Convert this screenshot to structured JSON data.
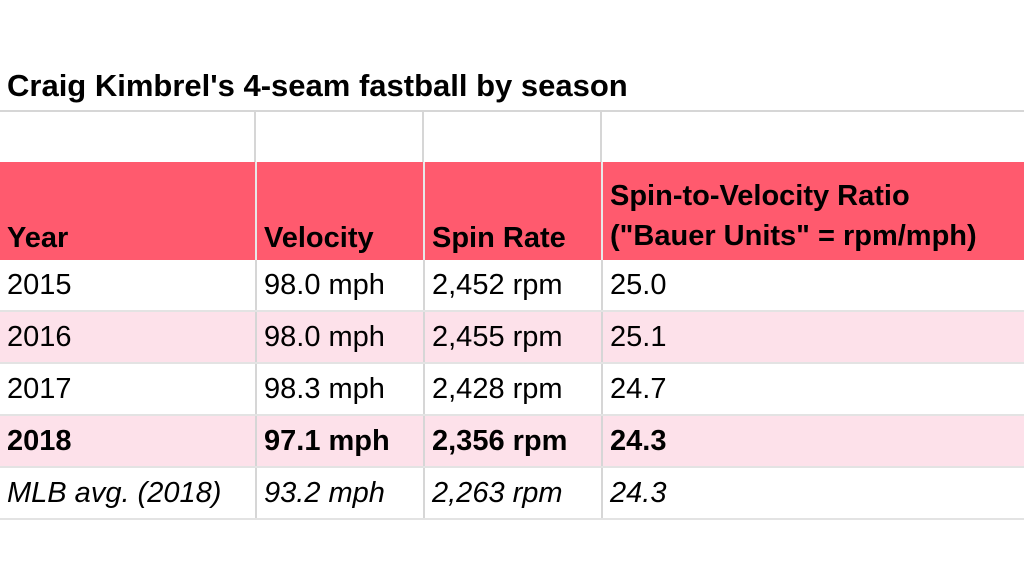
{
  "chart_data": {
    "type": "table",
    "title": "Craig Kimbrel's 4-seam fastball by season",
    "columns": [
      "Year",
      "Velocity",
      "Spin Rate",
      "Spin-to-Velocity Ratio (\"Bauer Units\" = rpm/mph)"
    ],
    "header": {
      "year": "Year",
      "velocity": "Velocity",
      "spin_rate": "Spin Rate",
      "ratio_line1": "Spin-to-Velocity Ratio",
      "ratio_line2": "(\"Bauer Units\" = rpm/mph)"
    },
    "rows": [
      {
        "label": "2015",
        "velocity": "98.0 mph",
        "spin_rate": "2,452 rpm",
        "ratio": "25.0",
        "style": "plain"
      },
      {
        "label": "2016",
        "velocity": "98.0 mph",
        "spin_rate": "2,455 rpm",
        "ratio": "25.1",
        "style": "band"
      },
      {
        "label": "2017",
        "velocity": "98.3 mph",
        "spin_rate": "2,428 rpm",
        "ratio": "24.7",
        "style": "plain"
      },
      {
        "label": "2018",
        "velocity": "97.1 mph",
        "spin_rate": "2,356 rpm",
        "ratio": "24.3",
        "style": "band highlight"
      },
      {
        "label": "MLB avg. (2018)",
        "velocity": "93.2 mph",
        "spin_rate": "2,263 rpm",
        "ratio": "24.3",
        "style": "plain italic"
      }
    ],
    "values": {
      "velocity_mph": [
        98.0,
        98.0,
        98.3,
        97.1,
        93.2
      ],
      "spin_rate_rpm": [
        2452,
        2455,
        2428,
        2356,
        2263
      ],
      "ratio": [
        25.0,
        25.1,
        24.7,
        24.3,
        24.3
      ]
    },
    "colors": {
      "header_bg": "#ff5a6e",
      "band_bg": "#fde1ea",
      "grid": "#d6d6d6"
    }
  }
}
